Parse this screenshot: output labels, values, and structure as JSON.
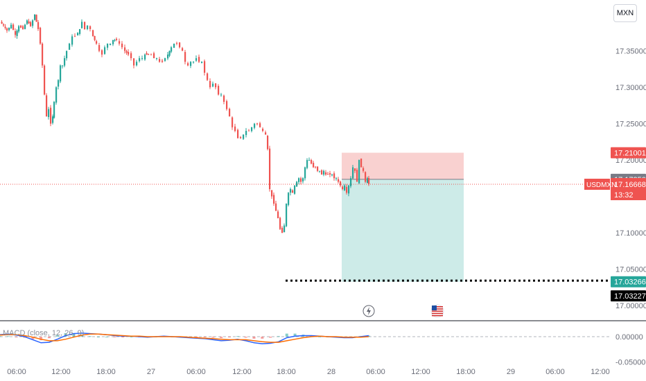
{
  "currency_label": "MXN",
  "symbol_label": "USDMXN",
  "countdown": "13:32",
  "macd_label": "MACD (close, 12, 26, 9)",
  "colors": {
    "up": "#26a69a",
    "down": "#ef5350",
    "macd_line": "#2962ff",
    "signal_line": "#ff6d00",
    "stop_zone": "#f8c9c8",
    "target_zone": "#c8e9e6"
  },
  "event_icons": [
    "lightning-icon",
    "us-flag-icon"
  ],
  "chart_data": [
    {
      "type": "candlestick",
      "title": "",
      "ylim": [
        16.98,
        17.42
      ],
      "y_ticks": [
        "17.35000",
        "17.30000",
        "17.25000",
        "17.20000",
        "17.15000",
        "17.10000",
        "17.05000",
        "17.00000"
      ],
      "x_ticks": [
        "06:00",
        "12:00",
        "18:00",
        "27",
        "06:00",
        "12:00",
        "18:00",
        "28",
        "06:00",
        "12:00",
        "18:00",
        "29",
        "06:00",
        "12:00"
      ],
      "close_path": [
        [
          0,
          17.39
        ],
        [
          5,
          17.385
        ],
        [
          10,
          17.378
        ],
        [
          16,
          17.386
        ],
        [
          22,
          17.372
        ],
        [
          27,
          17.384
        ],
        [
          33,
          17.38
        ],
        [
          39,
          17.392
        ],
        [
          44,
          17.384
        ],
        [
          50,
          17.4
        ],
        [
          55,
          17.38
        ],
        [
          58,
          17.36
        ],
        [
          61,
          17.33
        ],
        [
          64,
          17.29
        ],
        [
          67,
          17.26
        ],
        [
          70,
          17.27
        ],
        [
          73,
          17.25
        ],
        [
          76,
          17.26
        ],
        [
          78,
          17.28
        ],
        [
          81,
          17.3
        ],
        [
          84,
          17.31
        ],
        [
          87,
          17.33
        ],
        [
          90,
          17.33
        ],
        [
          93,
          17.34
        ],
        [
          96,
          17.35
        ],
        [
          100,
          17.36
        ],
        [
          104,
          17.37
        ],
        [
          108,
          17.37
        ],
        [
          112,
          17.375
        ],
        [
          115,
          17.38
        ],
        [
          118,
          17.39
        ],
        [
          122,
          17.38
        ],
        [
          126,
          17.385
        ],
        [
          130,
          17.38
        ],
        [
          134,
          17.37
        ],
        [
          139,
          17.36
        ],
        [
          143,
          17.35
        ],
        [
          147,
          17.345
        ],
        [
          151,
          17.355
        ],
        [
          155,
          17.36
        ],
        [
          159,
          17.36
        ],
        [
          163,
          17.365
        ],
        [
          168,
          17.365
        ],
        [
          172,
          17.36
        ],
        [
          176,
          17.355
        ],
        [
          180,
          17.35
        ],
        [
          185,
          17.345
        ],
        [
          189,
          17.34
        ],
        [
          193,
          17.33
        ],
        [
          197,
          17.335
        ],
        [
          201,
          17.34
        ],
        [
          205,
          17.34
        ],
        [
          209,
          17.345
        ],
        [
          214,
          17.345
        ],
        [
          218,
          17.345
        ],
        [
          222,
          17.34
        ],
        [
          226,
          17.34
        ],
        [
          230,
          17.335
        ],
        [
          234,
          17.335
        ],
        [
          238,
          17.34
        ],
        [
          242,
          17.345
        ],
        [
          247,
          17.355
        ],
        [
          251,
          17.36
        ],
        [
          255,
          17.36
        ],
        [
          259,
          17.355
        ],
        [
          263,
          17.35
        ],
        [
          267,
          17.335
        ],
        [
          271,
          17.33
        ],
        [
          275,
          17.335
        ],
        [
          279,
          17.335
        ],
        [
          283,
          17.34
        ],
        [
          287,
          17.335
        ],
        [
          291,
          17.335
        ],
        [
          295,
          17.32
        ],
        [
          299,
          17.31
        ],
        [
          303,
          17.3
        ],
        [
          307,
          17.305
        ],
        [
          311,
          17.3
        ],
        [
          315,
          17.29
        ],
        [
          319,
          17.29
        ],
        [
          323,
          17.28
        ],
        [
          327,
          17.27
        ],
        [
          331,
          17.26
        ],
        [
          335,
          17.245
        ],
        [
          339,
          17.24
        ],
        [
          343,
          17.23
        ],
        [
          347,
          17.23
        ],
        [
          351,
          17.235
        ],
        [
          355,
          17.24
        ],
        [
          359,
          17.24
        ],
        [
          363,
          17.245
        ],
        [
          367,
          17.25
        ],
        [
          371,
          17.25
        ],
        [
          375,
          17.245
        ],
        [
          379,
          17.24
        ],
        [
          383,
          17.235
        ],
        [
          386,
          17.215
        ],
        [
          389,
          17.16
        ],
        [
          392,
          17.15
        ],
        [
          395,
          17.14
        ],
        [
          398,
          17.13
        ],
        [
          401,
          17.12
        ],
        [
          404,
          17.105
        ],
        [
          407,
          17.1
        ],
        [
          410,
          17.11
        ],
        [
          413,
          17.14
        ],
        [
          416,
          17.155
        ],
        [
          419,
          17.16
        ],
        [
          422,
          17.155
        ],
        [
          425,
          17.165
        ],
        [
          428,
          17.17
        ],
        [
          431,
          17.175
        ],
        [
          434,
          17.17
        ],
        [
          437,
          17.175
        ],
        [
          440,
          17.19
        ],
        [
          443,
          17.2
        ],
        [
          446,
          17.2
        ],
        [
          449,
          17.195
        ],
        [
          452,
          17.19
        ],
        [
          455,
          17.19
        ],
        [
          458,
          17.185
        ],
        [
          461,
          17.185
        ],
        [
          464,
          17.18
        ],
        [
          467,
          17.185
        ],
        [
          470,
          17.18
        ],
        [
          473,
          17.18
        ],
        [
          476,
          17.18
        ],
        [
          479,
          17.18
        ],
        [
          482,
          17.175
        ],
        [
          485,
          17.175
        ],
        [
          488,
          17.17
        ],
        [
          491,
          17.165
        ],
        [
          494,
          17.16
        ],
        [
          497,
          17.165
        ],
        [
          500,
          17.155
        ],
        [
          503,
          17.165
        ],
        [
          506,
          17.175
        ],
        [
          509,
          17.19
        ],
        [
          512,
          17.185
        ],
        [
          515,
          17.17
        ],
        [
          518,
          17.2
        ],
        [
          521,
          17.19
        ],
        [
          524,
          17.185
        ],
        [
          527,
          17.17
        ],
        [
          530,
          17.175
        ],
        [
          532,
          17.167
        ]
      ],
      "current_price": "17.16668",
      "position": {
        "stop_price": "17.21001",
        "entry_price": "17.17350",
        "target_price": "17.03266"
      },
      "dotted_level_price": "17.03227"
    },
    {
      "type": "line",
      "title": "MACD (close, 12, 26, 9)",
      "ylim": [
        -0.06,
        0.03
      ],
      "y_ticks": [
        "0.00000",
        "-0.05000"
      ],
      "series": [
        {
          "name": "MACD",
          "values": [
            0.004,
            0.005,
            0.003,
            0.0,
            -0.006,
            -0.012,
            -0.011,
            -0.005,
            0.002,
            0.006,
            0.007,
            0.006,
            0.005,
            0.004,
            0.002,
            0.001,
            0.001,
            0.0,
            -0.001,
            0.0,
            0.001,
            0.0,
            -0.001,
            -0.002,
            -0.003,
            -0.004,
            -0.006,
            -0.008,
            -0.007,
            -0.005,
            -0.008,
            -0.012,
            -0.014,
            -0.013,
            -0.01,
            -0.002,
            0.001,
            0.002,
            0.002,
            0.001,
            0.0,
            -0.001,
            -0.002,
            -0.002,
            0.0,
            0.002
          ]
        },
        {
          "name": "Signal",
          "values": [
            0.003,
            0.004,
            0.004,
            0.002,
            -0.001,
            -0.005,
            -0.008,
            -0.008,
            -0.005,
            -0.001,
            0.003,
            0.005,
            0.005,
            0.004,
            0.003,
            0.002,
            0.001,
            0.001,
            0.0,
            0.0,
            0.0,
            0.0,
            0.0,
            -0.001,
            -0.002,
            -0.003,
            -0.004,
            -0.005,
            -0.006,
            -0.006,
            -0.006,
            -0.008,
            -0.01,
            -0.011,
            -0.011,
            -0.008,
            -0.005,
            -0.002,
            0.0,
            0.001,
            0.0,
            0.0,
            -0.001,
            -0.001,
            -0.001,
            0.0
          ]
        }
      ]
    }
  ]
}
